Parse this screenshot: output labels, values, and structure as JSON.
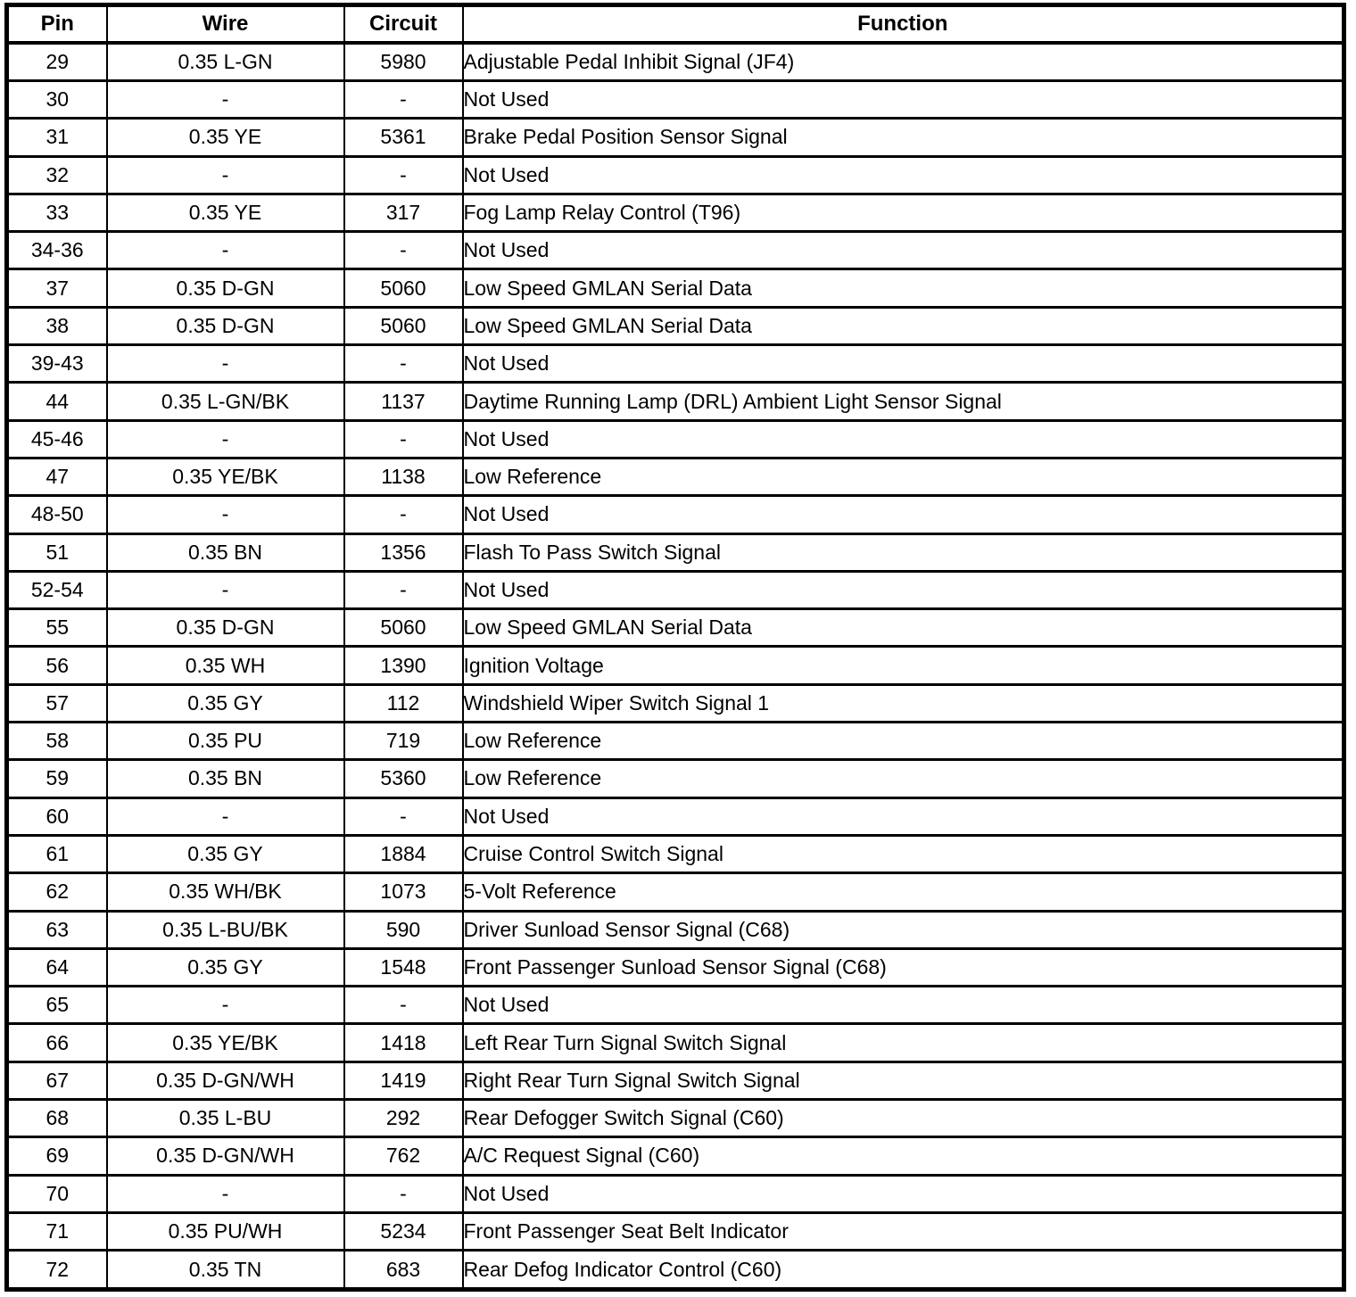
{
  "table": {
    "columns": [
      {
        "key": "pin",
        "label": "Pin"
      },
      {
        "key": "wire",
        "label": "Wire"
      },
      {
        "key": "circuit",
        "label": "Circuit"
      },
      {
        "key": "function",
        "label": "Function"
      }
    ],
    "rows": [
      {
        "pin": "29",
        "wire": "0.35 L-GN",
        "circuit": "5980",
        "function": "Adjustable Pedal Inhibit Signal (JF4)"
      },
      {
        "pin": "30",
        "wire": "-",
        "circuit": "-",
        "function": "Not Used"
      },
      {
        "pin": "31",
        "wire": "0.35 YE",
        "circuit": "5361",
        "function": "Brake Pedal Position Sensor Signal"
      },
      {
        "pin": "32",
        "wire": "-",
        "circuit": "-",
        "function": "Not Used"
      },
      {
        "pin": "33",
        "wire": "0.35 YE",
        "circuit": "317",
        "function": "Fog Lamp Relay Control (T96)"
      },
      {
        "pin": "34-36",
        "wire": "-",
        "circuit": "-",
        "function": "Not Used"
      },
      {
        "pin": "37",
        "wire": "0.35 D-GN",
        "circuit": "5060",
        "function": "Low Speed GMLAN Serial Data"
      },
      {
        "pin": "38",
        "wire": "0.35 D-GN",
        "circuit": "5060",
        "function": "Low Speed GMLAN Serial Data"
      },
      {
        "pin": "39-43",
        "wire": "-",
        "circuit": "-",
        "function": "Not Used"
      },
      {
        "pin": "44",
        "wire": "0.35 L-GN/BK",
        "circuit": "1137",
        "function": "Daytime Running Lamp (DRL) Ambient Light Sensor Signal"
      },
      {
        "pin": "45-46",
        "wire": "-",
        "circuit": "-",
        "function": "Not Used"
      },
      {
        "pin": "47",
        "wire": "0.35 YE/BK",
        "circuit": "1138",
        "function": "Low Reference"
      },
      {
        "pin": "48-50",
        "wire": "-",
        "circuit": "-",
        "function": "Not Used"
      },
      {
        "pin": "51",
        "wire": "0.35 BN",
        "circuit": "1356",
        "function": "Flash To Pass Switch Signal"
      },
      {
        "pin": "52-54",
        "wire": "-",
        "circuit": "-",
        "function": "Not Used"
      },
      {
        "pin": "55",
        "wire": "0.35 D-GN",
        "circuit": "5060",
        "function": "Low Speed GMLAN Serial Data"
      },
      {
        "pin": "56",
        "wire": "0.35 WH",
        "circuit": "1390",
        "function": "Ignition Voltage"
      },
      {
        "pin": "57",
        "wire": "0.35 GY",
        "circuit": "112",
        "function": "Windshield Wiper Switch Signal 1"
      },
      {
        "pin": "58",
        "wire": "0.35 PU",
        "circuit": "719",
        "function": "Low Reference"
      },
      {
        "pin": "59",
        "wire": "0.35 BN",
        "circuit": "5360",
        "function": "Low Reference"
      },
      {
        "pin": "60",
        "wire": "-",
        "circuit": "-",
        "function": "Not Used"
      },
      {
        "pin": "61",
        "wire": "0.35 GY",
        "circuit": "1884",
        "function": "Cruise Control Switch Signal"
      },
      {
        "pin": "62",
        "wire": "0.35 WH/BK",
        "circuit": "1073",
        "function": "5-Volt Reference"
      },
      {
        "pin": "63",
        "wire": "0.35 L-BU/BK",
        "circuit": "590",
        "function": "Driver Sunload Sensor Signal (C68)"
      },
      {
        "pin": "64",
        "wire": "0.35 GY",
        "circuit": "1548",
        "function": "Front Passenger Sunload Sensor Signal (C68)"
      },
      {
        "pin": "65",
        "wire": "-",
        "circuit": "-",
        "function": "Not Used"
      },
      {
        "pin": "66",
        "wire": "0.35 YE/BK",
        "circuit": "1418",
        "function": "Left Rear Turn Signal Switch Signal"
      },
      {
        "pin": "67",
        "wire": "0.35 D-GN/WH",
        "circuit": "1419",
        "function": "Right Rear Turn Signal Switch Signal"
      },
      {
        "pin": "68",
        "wire": "0.35 L-BU",
        "circuit": "292",
        "function": "Rear Defogger Switch Signal (C60)"
      },
      {
        "pin": "69",
        "wire": "0.35 D-GN/WH",
        "circuit": "762",
        "function": "A/C Request Signal (C60)"
      },
      {
        "pin": "70",
        "wire": "-",
        "circuit": "-",
        "function": "Not Used"
      },
      {
        "pin": "71",
        "wire": "0.35 PU/WH",
        "circuit": "5234",
        "function": "Front Passenger Seat Belt Indicator"
      },
      {
        "pin": "72",
        "wire": "0.35 TN",
        "circuit": "683",
        "function": "Rear Defog Indicator Control (C60)"
      }
    ]
  }
}
